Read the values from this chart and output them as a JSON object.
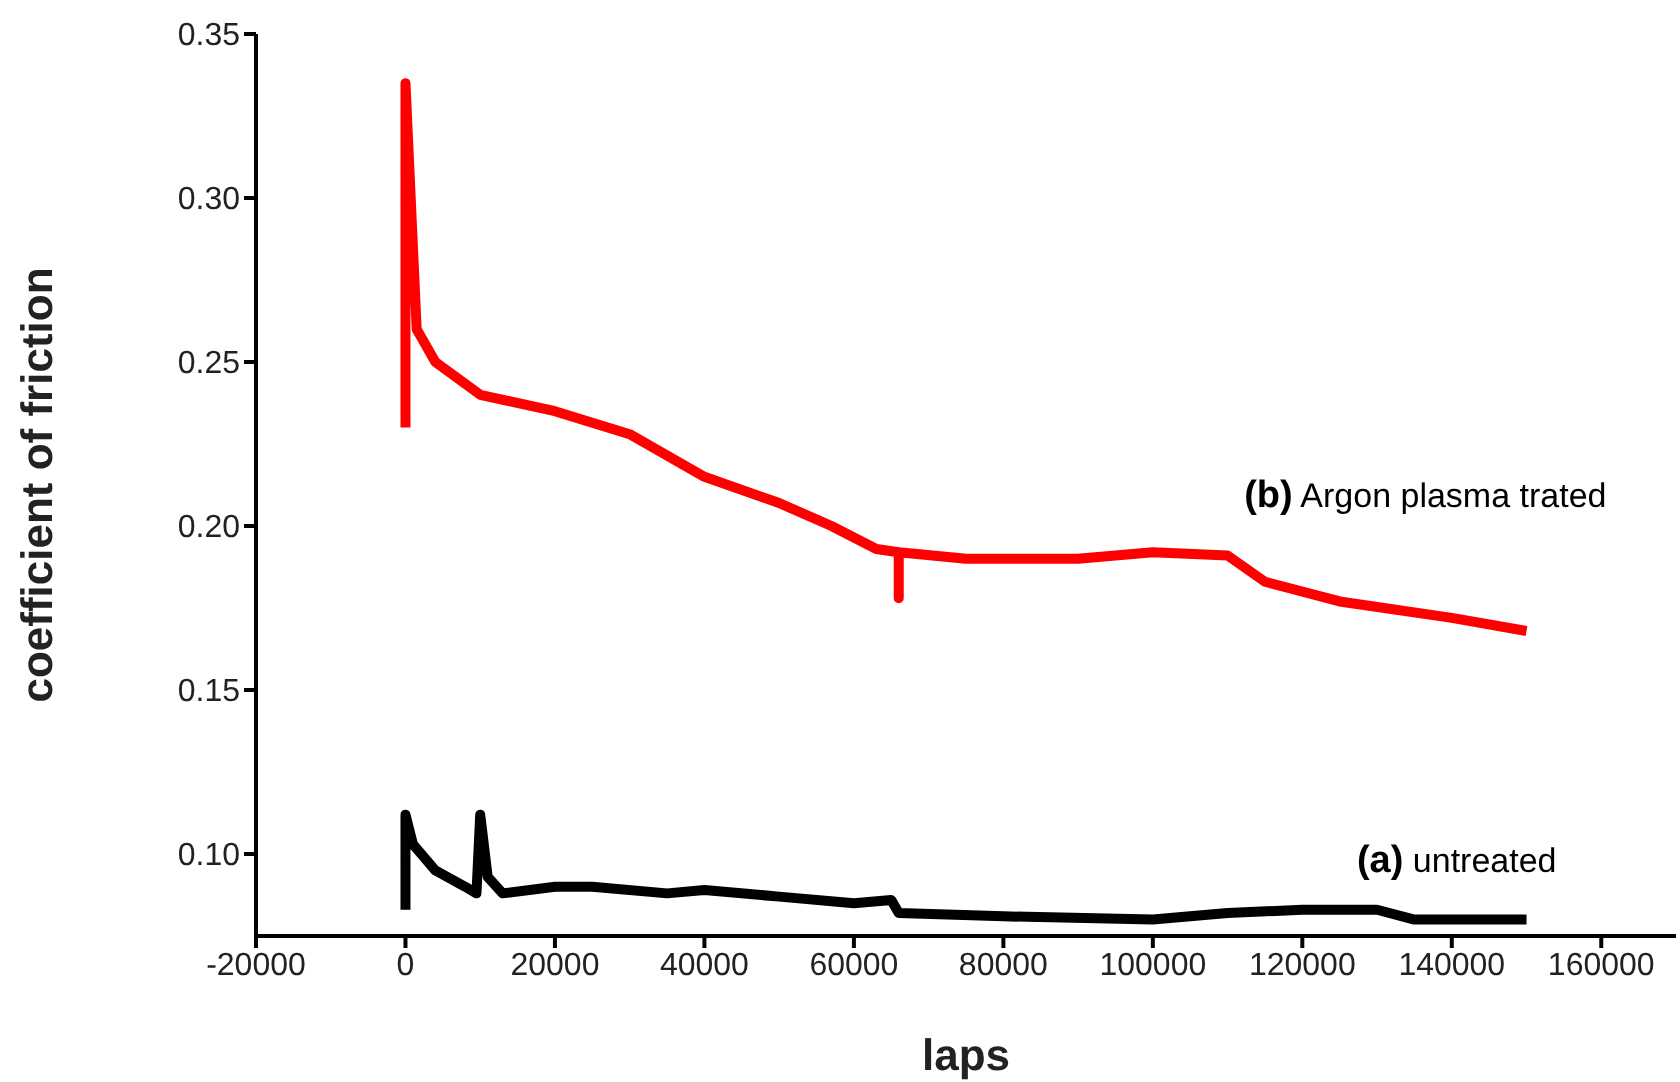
{
  "chart_data": {
    "type": "line",
    "xlabel": "laps",
    "ylabel": "coefficient of friction",
    "xlim": [
      -20000,
      170000
    ],
    "xticks": [
      -20000,
      0,
      20000,
      40000,
      60000,
      80000,
      100000,
      120000,
      140000,
      160000
    ],
    "ylim": [
      0.075,
      0.35
    ],
    "yticks": [
      {
        "value": 0.1,
        "label": "0.10"
      },
      {
        "value": 0.15,
        "label": "0.15"
      },
      {
        "value": 0.2,
        "label": "0.20"
      },
      {
        "value": 0.25,
        "label": "0.25"
      },
      {
        "value": 0.3,
        "label": "0.30"
      },
      {
        "value": 0.35,
        "label": "0.35"
      }
    ],
    "grid": false,
    "legend": false,
    "marker": "none",
    "line_style": "solid",
    "series": [
      {
        "name": "(b) Argon plasma trated",
        "color": "#ff0000",
        "x": [
          0,
          0,
          1500,
          4000,
          10000,
          20000,
          30000,
          40000,
          50000,
          57000,
          63000,
          66000,
          66000,
          66000,
          75000,
          90000,
          100000,
          110000,
          115000,
          125000,
          140000,
          150000
        ],
        "values": [
          0.23,
          0.335,
          0.26,
          0.25,
          0.24,
          0.235,
          0.228,
          0.215,
          0.207,
          0.2,
          0.193,
          0.192,
          0.178,
          0.192,
          0.19,
          0.19,
          0.192,
          0.191,
          0.183,
          0.177,
          0.172,
          0.168
        ]
      },
      {
        "name": "(a) untreated",
        "color": "#000000",
        "x": [
          0,
          0,
          1000,
          4000,
          8000,
          9500,
          10000,
          11000,
          13000,
          20000,
          25000,
          35000,
          40000,
          50000,
          60000,
          65000,
          66000,
          80000,
          100000,
          110000,
          120000,
          130000,
          135000,
          150000
        ],
        "values": [
          0.083,
          0.112,
          0.103,
          0.095,
          0.09,
          0.088,
          0.112,
          0.093,
          0.088,
          0.09,
          0.09,
          0.088,
          0.089,
          0.087,
          0.085,
          0.086,
          0.082,
          0.081,
          0.08,
          0.082,
          0.083,
          0.083,
          0.08,
          0.08
        ]
      }
    ]
  }
}
